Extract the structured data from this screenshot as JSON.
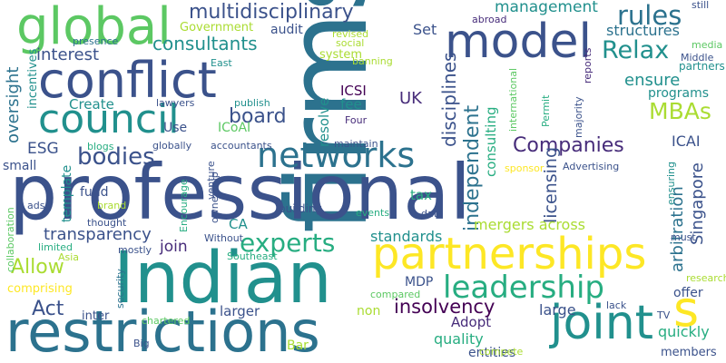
{
  "palette": {
    "dark_purple": "#440154",
    "purple": "#472c7a",
    "indigo": "#3b528b",
    "steel_blue": "#2c728e",
    "teal": "#21908d",
    "green_teal": "#27ad81",
    "green": "#5cc863",
    "lime": "#aadc32",
    "yellow": "#fde725"
  },
  "words": [
    {
      "text": "firms",
      "color": "#2c728e"
    },
    {
      "text": "professional",
      "color": "#3b528b"
    },
    {
      "text": "Indian",
      "color": "#21908d"
    },
    {
      "text": "restrictions",
      "color": "#2c728e"
    },
    {
      "text": "partnerships",
      "color": "#fde725"
    },
    {
      "text": "joint",
      "color": "#21908d"
    },
    {
      "text": "conflict",
      "color": "#3b528b"
    },
    {
      "text": "council",
      "color": "#21908d"
    },
    {
      "text": "global",
      "color": "#5cc863"
    },
    {
      "text": "model",
      "color": "#3b528b"
    },
    {
      "text": "s",
      "color": "#fde725"
    },
    {
      "text": "networks",
      "color": "#2c728e"
    },
    {
      "text": "leadership",
      "color": "#27ad81"
    },
    {
      "text": "experts",
      "color": "#27ad81"
    },
    {
      "text": "multidisciplinary",
      "color": "#3b528b"
    },
    {
      "text": "Companies",
      "color": "#472c7a"
    },
    {
      "text": "bodies",
      "color": "#3b528b"
    },
    {
      "text": "rules",
      "color": "#2c728e"
    },
    {
      "text": "Relax",
      "color": "#21908d"
    },
    {
      "text": "MBAs",
      "color": "#aadc32"
    },
    {
      "text": "insolvency",
      "color": "#440154"
    },
    {
      "text": "consultants",
      "color": "#21908d"
    },
    {
      "text": "board",
      "color": "#3b528b"
    },
    {
      "text": "ensure",
      "color": "#21908d"
    },
    {
      "text": "management",
      "color": "#21908d"
    },
    {
      "text": "Allow",
      "color": "#aadc32"
    },
    {
      "text": "transparency",
      "color": "#3b528b"
    },
    {
      "text": "Act",
      "color": "#3b528b"
    },
    {
      "text": "standards",
      "color": "#21908d"
    },
    {
      "text": "interest",
      "color": "#3b528b"
    },
    {
      "text": "structures",
      "color": "#2c728e"
    },
    {
      "text": "independent",
      "color": "#2c728e"
    },
    {
      "text": "disciplines",
      "color": "#3b528b"
    },
    {
      "text": "arbitration",
      "color": "#2c728e"
    },
    {
      "text": "licensing",
      "color": "#3b528b"
    },
    {
      "text": "programs",
      "color": "#21908d"
    },
    {
      "text": "oversight",
      "color": "#2c728e"
    },
    {
      "text": "mergers across",
      "color": "#aadc32"
    },
    {
      "text": "Singapore",
      "color": "#3b528b"
    },
    {
      "text": "quality",
      "color": "#27ad81"
    },
    {
      "text": "join",
      "color": "#472c7a"
    },
    {
      "text": "ICAI",
      "color": "#3b528b"
    },
    {
      "text": "Adopt",
      "color": "#472c7a"
    },
    {
      "text": "quickly",
      "color": "#27ad81"
    },
    {
      "text": "members",
      "color": "#3b528b"
    },
    {
      "text": "entities",
      "color": "#3b528b"
    },
    {
      "text": "Bar",
      "color": "#aadc32"
    },
    {
      "text": "larger",
      "color": "#3b528b"
    },
    {
      "text": "large",
      "color": "#3b528b"
    },
    {
      "text": "offer",
      "color": "#3b528b"
    },
    {
      "text": "ESG",
      "color": "#3b528b"
    },
    {
      "text": "Create",
      "color": "#21908d"
    },
    {
      "text": "UK",
      "color": "#472c7a"
    },
    {
      "text": "ICSI",
      "color": "#440154"
    },
    {
      "text": "fee",
      "color": "#21908d"
    },
    {
      "text": "tax",
      "color": "#27ad81"
    },
    {
      "text": "fund",
      "color": "#3b528b"
    },
    {
      "text": "CA",
      "color": "#21908d"
    },
    {
      "text": "MDP",
      "color": "#3b528b"
    },
    {
      "text": "Set",
      "color": "#3b528b"
    },
    {
      "text": "audit",
      "color": "#3b528b"
    },
    {
      "text": "resolve",
      "color": "#21908d"
    },
    {
      "text": "consulting",
      "color": "#27ad81"
    },
    {
      "text": "partners",
      "color": "#21908d"
    },
    {
      "text": "Use",
      "color": "#3b528b"
    },
    {
      "text": "ICoAI",
      "color": "#5cc863"
    },
    {
      "text": "comprising",
      "color": "#fde725"
    },
    {
      "text": "small",
      "color": "#3b528b"
    },
    {
      "text": "template",
      "color": "#21908d"
    },
    {
      "text": "non",
      "color": "#aadc32"
    },
    {
      "text": "inter",
      "color": "#3b528b"
    },
    {
      "text": "Government",
      "color": "#aadc32"
    },
    {
      "text": "system",
      "color": "#aadc32"
    },
    {
      "text": "incentives",
      "color": "#21908d"
    },
    {
      "text": "presence",
      "color": "#2c728e"
    },
    {
      "text": "building",
      "color": "#3b528b"
    },
    {
      "text": "maintain",
      "color": "#3b528b"
    },
    {
      "text": "globally",
      "color": "#3b528b"
    },
    {
      "text": "accountants",
      "color": "#3b528b"
    },
    {
      "text": "Four",
      "color": "#472c7a"
    },
    {
      "text": "publish",
      "color": "#21908d"
    },
    {
      "text": "lawyers",
      "color": "#3b528b"
    },
    {
      "text": "blogs",
      "color": "#27ad81"
    },
    {
      "text": "East",
      "color": "#21908d"
    },
    {
      "text": "revised",
      "color": "#aadc32"
    },
    {
      "text": "social",
      "color": "#aadc32"
    },
    {
      "text": "banning",
      "color": "#aadc32"
    },
    {
      "text": "reports",
      "color": "#472c7a"
    },
    {
      "text": "abroad",
      "color": "#472c7a"
    },
    {
      "text": "still",
      "color": "#3b528b"
    },
    {
      "text": "media",
      "color": "#5cc863"
    },
    {
      "text": "Middle",
      "color": "#3b528b"
    },
    {
      "text": "international",
      "color": "#5cc863"
    },
    {
      "text": "Permit",
      "color": "#27ad81"
    },
    {
      "text": "majority",
      "color": "#3b528b"
    },
    {
      "text": "sponsor",
      "color": "#fde725"
    },
    {
      "text": "Advertising",
      "color": "#3b528b"
    },
    {
      "text": "ensuring",
      "color": "#21908d"
    },
    {
      "text": "ads",
      "color": "#3b528b"
    },
    {
      "text": "brand",
      "color": "#aadc32"
    },
    {
      "text": "thought",
      "color": "#3b528b"
    },
    {
      "text": "limited",
      "color": "#27ad81"
    },
    {
      "text": "Asia",
      "color": "#aadc32"
    },
    {
      "text": "mostly",
      "color": "#3b528b"
    },
    {
      "text": "Southeast",
      "color": "#27ad81"
    },
    {
      "text": "Without",
      "color": "#3b528b"
    },
    {
      "text": "Encourage",
      "color": "#27ad81"
    },
    {
      "text": "ownership",
      "color": "#3b528b"
    },
    {
      "text": "venture",
      "color": "#3b528b"
    },
    {
      "text": "security",
      "color": "#2c728e"
    },
    {
      "text": "events",
      "color": "#27ad81"
    },
    {
      "text": "data",
      "color": "#3b528b"
    },
    {
      "text": "collaboration",
      "color": "#5cc863"
    },
    {
      "text": "chartered",
      "color": "#5cc863"
    },
    {
      "text": "Big",
      "color": "#3b528b"
    },
    {
      "text": "compared",
      "color": "#5cc863"
    },
    {
      "text": "compete",
      "color": "#aadc32"
    },
    {
      "text": "lack",
      "color": "#3b528b"
    },
    {
      "text": "TV",
      "color": "#3b528b"
    },
    {
      "text": "must",
      "color": "#3b528b"
    },
    {
      "text": "research",
      "color": "#aadc32"
    }
  ]
}
